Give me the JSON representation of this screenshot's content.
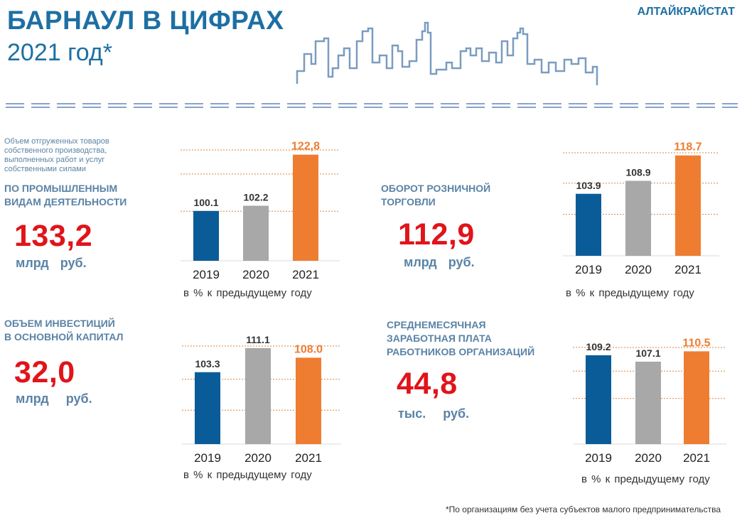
{
  "header": {
    "title": "БАРНАУЛ В ЦИФРАХ",
    "subtitle": "2021 год*",
    "brand": "АЛТАЙКРАЙСТАТ"
  },
  "colors": {
    "primary": "#1d6fa3",
    "label": "#5a83a6",
    "accent_red": "#e0141a",
    "bar_2019": "#0a5c99",
    "bar_2020": "#a8a8a8",
    "bar_2021": "#ee7d31",
    "grid": "#d9833f"
  },
  "blocks": {
    "industry": {
      "desc_small": "Объем  отгруженных  товаров\nсобственного  производства,\nвыполненных  работ  и  услуг\nсобственными  силами",
      "desc_bold": "ПО ПРОМЫШЛЕННЫМ\nВИДАМ ДЕЯТЕЛЬНОСТИ",
      "value": "133,2",
      "unit": "млрд  руб."
    },
    "retail": {
      "desc_bold": "ОБОРОТ  РОЗНИЧНОЙ\nТОРГОВЛИ",
      "value": "112,9",
      "unit": "млрд  руб."
    },
    "investment": {
      "desc_bold": "ОБЪЕМ ИНВЕСТИЦИЙ\nВ ОСНОВНОЙ КАПИТАЛ",
      "value": "32,0",
      "unit": "млрд   руб."
    },
    "wage": {
      "desc_bold": "СРЕДНЕМЕСЯЧНАЯ\nЗАРАБОТНАЯ ПЛАТА\nРАБОТНИКОВ ОРГАНИЗАЦИЙ",
      "value": "44,8",
      "unit": "тыс.   руб."
    }
  },
  "chart_data": [
    {
      "id": "industry",
      "type": "bar",
      "categories": [
        "2019",
        "2020",
        "2021"
      ],
      "values": [
        100.1,
        102.2,
        122.8
      ],
      "data_labels": [
        "100.1",
        "102.2",
        "122,8"
      ],
      "caption": "в % к предыдущему  году",
      "ylim": [
        80,
        125
      ],
      "grid_values": [
        100,
        115
      ],
      "grid": true
    },
    {
      "id": "retail",
      "type": "bar",
      "categories": [
        "2019",
        "2020",
        "2021"
      ],
      "values": [
        103.9,
        108.9,
        118.7
      ],
      "data_labels": [
        "103.9",
        "108.9",
        "118.7"
      ],
      "caption": "в % к предыдущему  году",
      "ylim": [
        80,
        120
      ],
      "grid_values": [
        96,
        108
      ],
      "grid": true
    },
    {
      "id": "investment",
      "type": "bar",
      "categories": [
        "2019",
        "2020",
        "2021"
      ],
      "values": [
        103.3,
        111.1,
        108.0
      ],
      "data_labels": [
        "103.3",
        "111.1",
        "108.0"
      ],
      "caption": "в % к предыдущему  году",
      "ylim": [
        80,
        112
      ],
      "grid_values": [
        91,
        101
      ],
      "grid": true
    },
    {
      "id": "wage",
      "type": "bar",
      "categories": [
        "2019",
        "2020",
        "2021"
      ],
      "values": [
        109.2,
        107.1,
        110.5
      ],
      "data_labels": [
        "109.2",
        "107.1",
        "110.5"
      ],
      "caption": "в % к предыдущему  году",
      "ylim": [
        80,
        112
      ],
      "grid_values": [
        95,
        104
      ],
      "grid": true
    }
  ],
  "footnote": "*По организациям  без  учета субъектов малого предпринимательства"
}
